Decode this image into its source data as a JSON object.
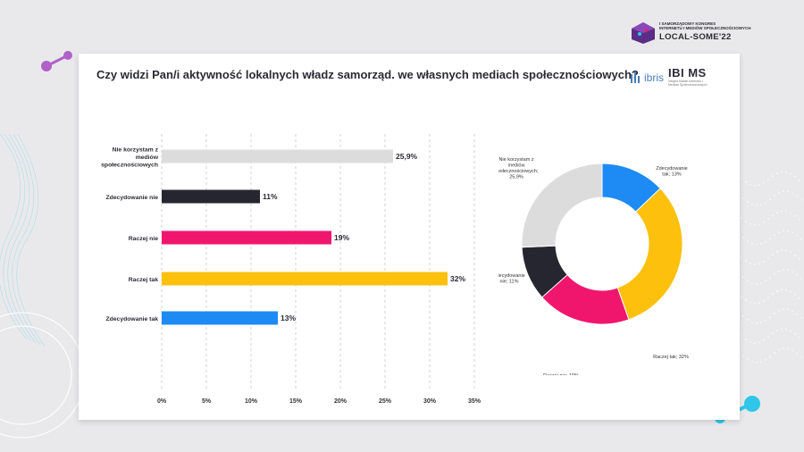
{
  "header": {
    "congress_line1": "I SAMORZĄDOWY KONGRES",
    "congress_line2": "INTERNETU I MEDIÓW SPOŁECZNOŚCIOWYCH",
    "congress_name": "LOCAL-SOME'22"
  },
  "logos": {
    "ibris": "ibris",
    "ibims": "IBI MS",
    "ibims_small": "Instytut Badań Internetu i Mediów Społecznościowych"
  },
  "chart_data": [
    {
      "type": "bar",
      "title": "Czy widzi Pan/i aktywność lokalnych władz samorząd. we własnych mediach społecznościowych?",
      "orientation": "horizontal",
      "categories": [
        "Nie korzystam z mediów społecznościowych",
        "Zdecydowanie nie",
        "Raczej nie",
        "Raczej tak",
        "Zdecydowanie tak"
      ],
      "category_lines": [
        [
          "Nie korzystam z",
          "mediów",
          "społecznościowych"
        ],
        [
          "Zdecydowanie nie"
        ],
        [
          "Raczej nie"
        ],
        [
          "Raczej tak"
        ],
        [
          "Zdecydowanie tak"
        ]
      ],
      "values": [
        25.9,
        11,
        19,
        32,
        13
      ],
      "value_labels": [
        "25,9%",
        "11%",
        "19%",
        "32%",
        "13%"
      ],
      "colors": [
        "#dcdcdc",
        "#262630",
        "#f0166e",
        "#fdc10d",
        "#1e8bf5"
      ],
      "xlim": [
        0,
        35
      ],
      "xticks": [
        "0%",
        "5%",
        "10%",
        "15%",
        "20%",
        "25%",
        "30%",
        "35%"
      ],
      "grid": "vertical dashed"
    },
    {
      "type": "pie",
      "donut": true,
      "slices": [
        {
          "label_lines": [
            "Zdecydowanie",
            "tak; 13%"
          ],
          "value": 13,
          "color": "#1e8bf5"
        },
        {
          "label_lines": [
            "Raczej tak; 32%"
          ],
          "value": 32,
          "color": "#fdc10d"
        },
        {
          "label_lines": [
            "Raczej nie; 19%"
          ],
          "value": 19,
          "color": "#f0166e"
        },
        {
          "label_lines": [
            "Zdecydowanie",
            "nie; 11%"
          ],
          "value": 11,
          "color": "#262630"
        },
        {
          "label_lines": [
            "Nie korzystam z",
            "mediów",
            "społecznościowych;",
            "25,9%"
          ],
          "value": 25.9,
          "color": "#dcdcdc"
        }
      ]
    }
  ],
  "colors": {
    "background": "#e9e9ec",
    "card": "#ffffff",
    "accent_cyan": "#2fc6ea",
    "accent_purple": "#b062c8"
  }
}
